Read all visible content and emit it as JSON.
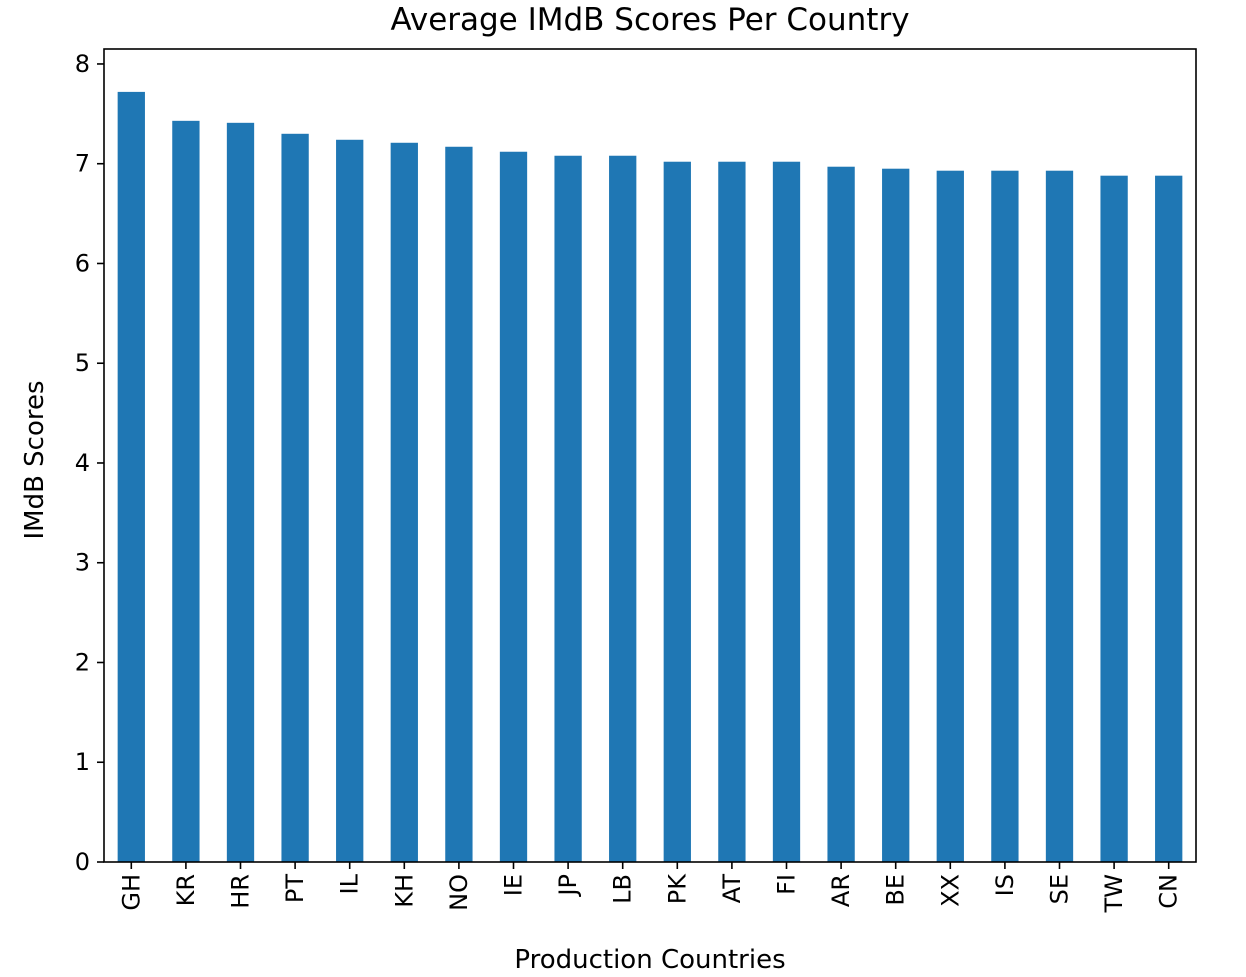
{
  "chart_data": {
    "type": "bar",
    "title": "Average IMdB Scores Per Country",
    "xlabel": "Production Countries",
    "ylabel": "IMdB Scores",
    "categories": [
      "GH",
      "KR",
      "HR",
      "PT",
      "IL",
      "KH",
      "NO",
      "IE",
      "JP",
      "LB",
      "PK",
      "AT",
      "FI",
      "AR",
      "BE",
      "XX",
      "IS",
      "SE",
      "TW",
      "CN"
    ],
    "values": [
      7.72,
      7.43,
      7.41,
      7.3,
      7.24,
      7.21,
      7.17,
      7.12,
      7.08,
      7.08,
      7.02,
      7.02,
      7.02,
      6.97,
      6.95,
      6.93,
      6.93,
      6.93,
      6.88,
      6.88
    ],
    "ylim": [
      0,
      8.15
    ],
    "yticks": [
      0,
      1,
      2,
      3,
      4,
      5,
      6,
      7,
      8
    ],
    "bar_color": "#1f77b4",
    "grid": false,
    "legend": false
  }
}
